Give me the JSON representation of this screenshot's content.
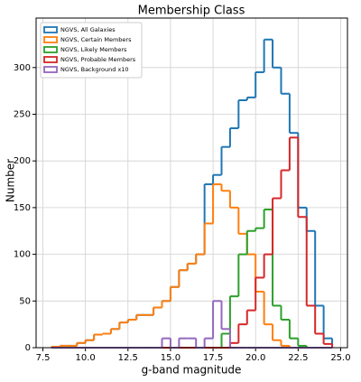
{
  "chart_data": {
    "type": "histogram",
    "title": "Membership Class",
    "xlabel": "g-band magnitude",
    "ylabel": "Number",
    "bins": [
      8.0,
      8.5,
      9.0,
      9.5,
      10.0,
      10.5,
      11.0,
      11.5,
      12.0,
      12.5,
      13.0,
      13.5,
      14.0,
      14.5,
      15.0,
      15.5,
      16.0,
      16.5,
      17.0,
      17.5,
      18.0,
      18.5,
      19.0,
      19.5,
      20.0,
      20.5,
      21.0,
      21.5,
      22.0,
      22.5,
      23.0,
      23.5,
      24.0,
      24.5
    ],
    "series": [
      {
        "name": "NGVS, All Galaxies",
        "color": "#1f77b4",
        "values": [
          1,
          2,
          2,
          5,
          8,
          14,
          15,
          20,
          27,
          30,
          35,
          35,
          43,
          50,
          65,
          83,
          90,
          100,
          175,
          185,
          215,
          235,
          265,
          268,
          295,
          330,
          300,
          272,
          230,
          150,
          125,
          45,
          10
        ]
      },
      {
        "name": "NGVS, Certain Members",
        "color": "#ff7f0e",
        "values": [
          1,
          2,
          2,
          5,
          8,
          14,
          15,
          20,
          27,
          30,
          35,
          35,
          43,
          50,
          65,
          83,
          90,
          100,
          133,
          175,
          168,
          150,
          122,
          100,
          60,
          25,
          8,
          2,
          0,
          0,
          0,
          0,
          0
        ]
      },
      {
        "name": "NGVS, Likely Members",
        "color": "#2ca02c",
        "values": [
          0,
          0,
          0,
          0,
          0,
          0,
          0,
          0,
          0,
          0,
          0,
          0,
          0,
          0,
          0,
          0,
          0,
          0,
          0,
          0,
          15,
          55,
          100,
          125,
          128,
          148,
          45,
          30,
          10,
          2,
          0,
          0,
          0
        ]
      },
      {
        "name": "NGVS, Probable Members",
        "color": "#d62728",
        "values": [
          0,
          0,
          0,
          0,
          0,
          0,
          0,
          0,
          0,
          0,
          0,
          0,
          0,
          0,
          0,
          0,
          0,
          0,
          0,
          0,
          0,
          5,
          25,
          40,
          75,
          100,
          160,
          190,
          225,
          140,
          45,
          15,
          4
        ]
      },
      {
        "name": "NGVS, Background x10",
        "color": "#9467bd",
        "values": [
          0,
          0,
          0,
          0,
          0,
          0,
          0,
          0,
          0,
          0,
          0,
          0,
          0,
          10,
          0,
          10,
          10,
          0,
          10,
          50,
          20,
          0,
          0,
          0,
          0,
          0,
          0,
          0,
          0,
          0,
          0,
          0,
          0
        ]
      }
    ],
    "xlim": [
      7.1,
      25.4
    ],
    "ylim": [
      0,
      353
    ],
    "xticks": [
      7.5,
      {
        "value": 10,
        "label": "10.0"
      },
      12.5,
      {
        "value": 15,
        "label": "15.0"
      },
      17.5,
      {
        "value": 20,
        "label": "20.0"
      },
      22.5,
      {
        "value": 25,
        "label": "25.0"
      }
    ],
    "yticks": [
      0,
      50,
      100,
      150,
      200,
      250,
      300
    ],
    "grid": true,
    "legend": "upper left"
  }
}
